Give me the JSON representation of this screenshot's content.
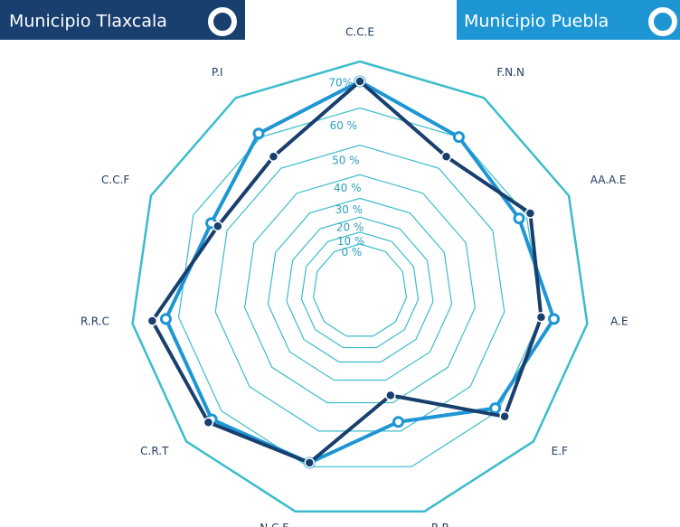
{
  "chart_data": {
    "type": "radar",
    "categories": [
      "C.C.E",
      "F.N.N",
      "AA.A.E",
      "A.E",
      "E.F",
      "R.P",
      "N.C.F",
      "C.R.T",
      "R.R.C",
      "C.C.F",
      "P.I"
    ],
    "series": [
      {
        "name": "Municipio Tlaxcala",
        "color": "#183f6e",
        "values": [
          66,
          54,
          61,
          60,
          62,
          37,
          59,
          64,
          66,
          53,
          54
        ]
      },
      {
        "name": "Municipio Puebla",
        "color": "#1e96d4",
        "values": [
          66,
          60,
          58,
          63,
          59,
          47,
          59,
          63,
          63,
          55,
          61
        ]
      }
    ],
    "rlim": [
      0,
      70
    ],
    "rticks": [
      {
        "value": 0,
        "label": "0 %"
      },
      {
        "value": 10,
        "label": "10 %"
      },
      {
        "value": 20,
        "label": "20 %"
      },
      {
        "value": 30,
        "label": "30 %"
      },
      {
        "value": 40,
        "label": "40 %"
      },
      {
        "value": 50,
        "label": "50 %"
      },
      {
        "value": 60,
        "label": "60 %"
      },
      {
        "value": 70,
        "label": "70%"
      }
    ],
    "grid_color": "#3bbccc"
  }
}
